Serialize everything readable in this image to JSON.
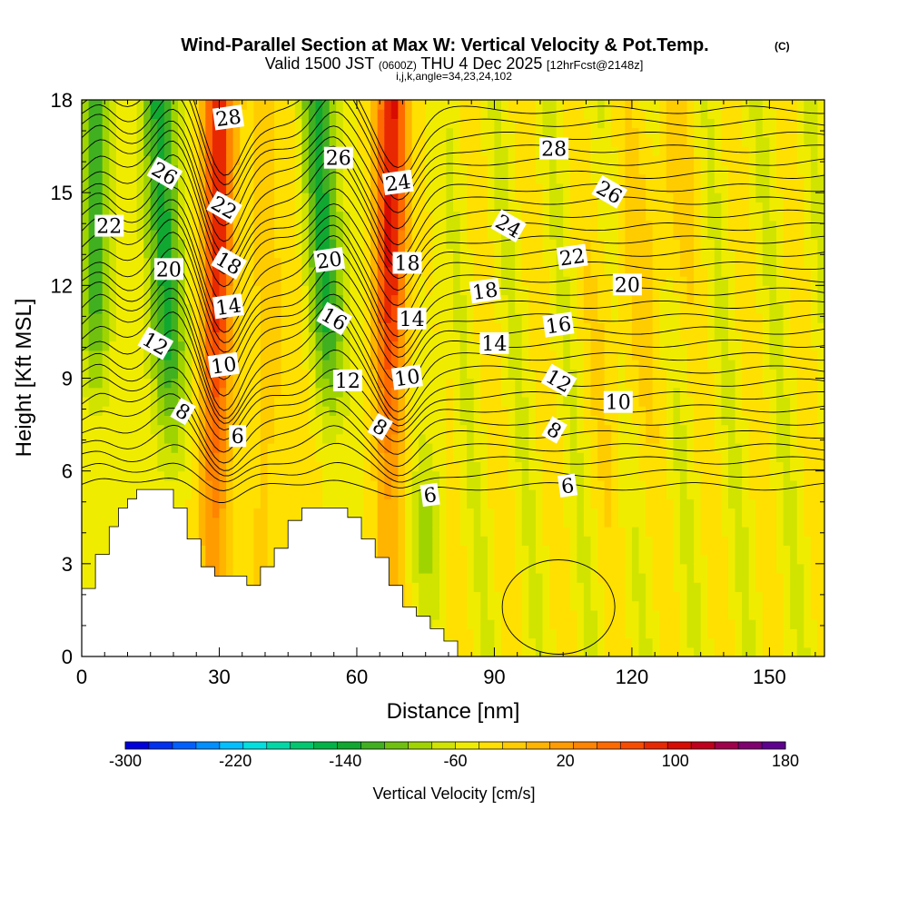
{
  "chart_data": {
    "type": "heatmap",
    "title": "Wind-Parallel Section at Max W: Vertical Velocity & Pot.Temp.",
    "copyright": "(C)",
    "subtitle_main": "Valid 1500 JST",
    "subtitle_utc": "(0600Z)",
    "subtitle_date": "THU 4 Dec 2025",
    "subtitle_fcst": "[12hrFcst@2148z]",
    "subtitle_idx": "i,j,k,angle=34,23,24,102",
    "xlabel": "Distance [nm]",
    "ylabel": "Height [Kft MSL]",
    "xlim": [
      0,
      162
    ],
    "ylim": [
      0,
      18
    ],
    "xticks": [
      0,
      30,
      60,
      90,
      120,
      150
    ],
    "yticks": [
      0,
      3,
      6,
      9,
      12,
      15,
      18
    ],
    "colorbar": {
      "label": "Vertical Velocity [cm/s]",
      "min": -300,
      "max": 180,
      "step": 20,
      "tick_values": [
        -300,
        -220,
        -140,
        -60,
        20,
        100,
        180
      ],
      "colors": [
        "#0000dd",
        "#0030f0",
        "#0060ff",
        "#0090ff",
        "#00c0ff",
        "#00e0e0",
        "#00d8a8",
        "#00c870",
        "#00b448",
        "#10a830",
        "#40b020",
        "#70c010",
        "#a0d400",
        "#d0e400",
        "#f0ec00",
        "#ffe000",
        "#ffcc00",
        "#ffb400",
        "#ff9c00",
        "#ff8400",
        "#ff6a00",
        "#f84c00",
        "#e82800",
        "#d80c00",
        "#c0001c",
        "#a0004c",
        "#800070",
        "#600090"
      ]
    },
    "theta_contour_labels": [
      {
        "x": 6,
        "y": 13.9,
        "text": "22"
      },
      {
        "x": 18,
        "y": 15.6,
        "text": "26"
      },
      {
        "x": 32,
        "y": 17.4,
        "text": "28"
      },
      {
        "x": 56,
        "y": 16.1,
        "text": "26"
      },
      {
        "x": 69,
        "y": 15.3,
        "text": "24"
      },
      {
        "x": 31,
        "y": 14.5,
        "text": "22"
      },
      {
        "x": 19,
        "y": 12.5,
        "text": "20"
      },
      {
        "x": 32,
        "y": 12.7,
        "text": "18"
      },
      {
        "x": 54,
        "y": 12.8,
        "text": "20"
      },
      {
        "x": 71,
        "y": 12.7,
        "text": "18"
      },
      {
        "x": 32,
        "y": 11.3,
        "text": "14"
      },
      {
        "x": 55,
        "y": 10.9,
        "text": "16"
      },
      {
        "x": 72,
        "y": 10.9,
        "text": "14"
      },
      {
        "x": 16,
        "y": 10.1,
        "text": "12"
      },
      {
        "x": 31,
        "y": 9.4,
        "text": "10"
      },
      {
        "x": 58,
        "y": 8.9,
        "text": "12"
      },
      {
        "x": 71,
        "y": 9.0,
        "text": "10"
      },
      {
        "x": 22,
        "y": 7.9,
        "text": "8"
      },
      {
        "x": 34,
        "y": 7.1,
        "text": "6"
      },
      {
        "x": 65,
        "y": 7.4,
        "text": "8"
      },
      {
        "x": 76,
        "y": 5.2,
        "text": "6"
      },
      {
        "x": 90,
        "y": 10.1,
        "text": "14"
      },
      {
        "x": 88,
        "y": 11.8,
        "text": "18"
      },
      {
        "x": 93,
        "y": 13.9,
        "text": "24"
      },
      {
        "x": 103,
        "y": 16.4,
        "text": "28"
      },
      {
        "x": 115,
        "y": 15.0,
        "text": "26"
      },
      {
        "x": 107,
        "y": 12.9,
        "text": "22"
      },
      {
        "x": 119,
        "y": 12.0,
        "text": "20"
      },
      {
        "x": 104,
        "y": 10.7,
        "text": "16"
      },
      {
        "x": 104,
        "y": 8.9,
        "text": "12"
      },
      {
        "x": 117,
        "y": 8.2,
        "text": "10"
      },
      {
        "x": 103,
        "y": 7.3,
        "text": "8"
      },
      {
        "x": 106,
        "y": 5.5,
        "text": "6"
      }
    ]
  }
}
